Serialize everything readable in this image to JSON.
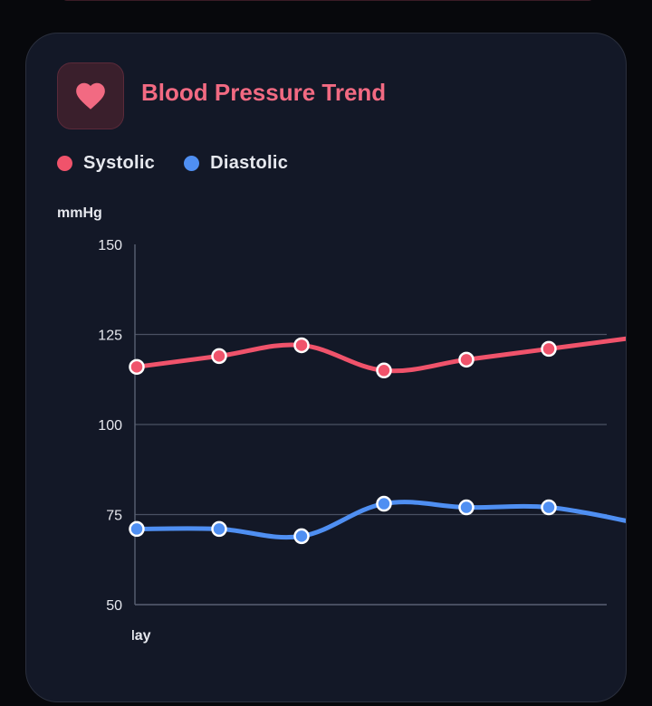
{
  "card": {
    "title": "Blood Pressure Trend",
    "icon": "heart-icon",
    "accent": "#f26a82"
  },
  "chart_data": {
    "type": "line",
    "ylabel": "mmHg",
    "xlabel": "",
    "ylim": [
      50,
      150
    ],
    "yticks": [
      50,
      75,
      100,
      125,
      150
    ],
    "categories": [
      "May",
      "",
      "",
      "",
      "",
      "",
      ""
    ],
    "grid": "horizontal",
    "legend_position": "top-left",
    "series": [
      {
        "name": "Systolic",
        "color": "#f0536b",
        "values": [
          116,
          119,
          122,
          115,
          118,
          121,
          124
        ]
      },
      {
        "name": "Diastolic",
        "color": "#4f8ff2",
        "values": [
          71,
          71,
          69,
          78,
          77,
          77,
          73
        ]
      }
    ]
  }
}
